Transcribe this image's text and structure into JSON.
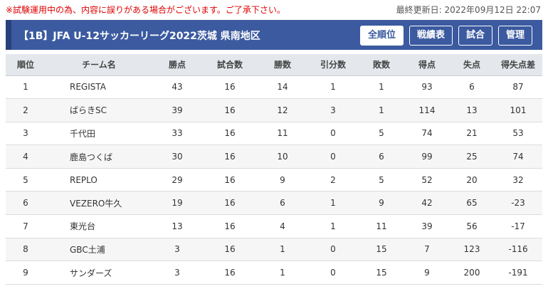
{
  "notice": "※試験運用中の為、内容に誤りがある場合がございます。ご了承下さい。",
  "last_updated": "最終更新日: 2022年09月12日 22:07",
  "title": "【1B】JFA U-12サッカーリーグ2022茨城 県南地区",
  "buttons": [
    "全順位",
    "戦績表",
    "試合",
    "管理"
  ],
  "columns": [
    "順位",
    "チーム名",
    "勝点",
    "試合数",
    "勝数",
    "引分数",
    "敗数",
    "得点",
    "失点",
    "得失点差"
  ],
  "rows": [
    [
      "1",
      "REGISTA",
      "43",
      "16",
      "14",
      "1",
      "1",
      "93",
      "6",
      "87"
    ],
    [
      "2",
      "ばらきSC",
      "39",
      "16",
      "12",
      "3",
      "1",
      "114",
      "13",
      "101"
    ],
    [
      "3",
      "千代田",
      "33",
      "16",
      "11",
      "0",
      "5",
      "74",
      "21",
      "53"
    ],
    [
      "4",
      "鹿島つくば",
      "30",
      "16",
      "10",
      "0",
      "6",
      "99",
      "25",
      "74"
    ],
    [
      "5",
      "REPLO",
      "29",
      "16",
      "9",
      "2",
      "5",
      "52",
      "20",
      "32"
    ],
    [
      "6",
      "VEZERO牛久",
      "19",
      "16",
      "6",
      "1",
      "9",
      "42",
      "65",
      "-23"
    ],
    [
      "7",
      "東光台",
      "13",
      "16",
      "4",
      "1",
      "11",
      "39",
      "56",
      "-17"
    ],
    [
      "8",
      "GBC土浦",
      "3",
      "16",
      "1",
      "0",
      "15",
      "7",
      "123",
      "-116"
    ],
    [
      "9",
      "サンダーズ",
      "3",
      "16",
      "1",
      "0",
      "15",
      "9",
      "200",
      "-191"
    ]
  ]
}
